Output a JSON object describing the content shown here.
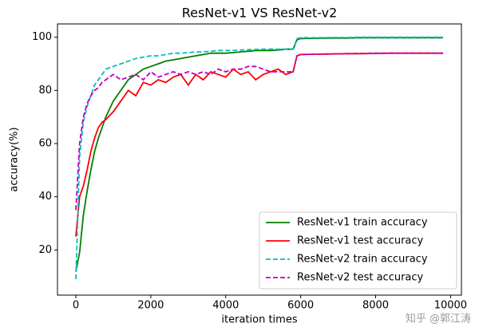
{
  "chart_data": {
    "type": "line",
    "title": "ResNet-v1 VS ResNet-v2",
    "x_label": "iteration times",
    "y_label": "accuracy(%)",
    "x": [
      0,
      100,
      200,
      300,
      400,
      500,
      600,
      700,
      800,
      1000,
      1200,
      1400,
      1600,
      1800,
      2000,
      2200,
      2400,
      2600,
      2800,
      3000,
      3200,
      3400,
      3600,
      3800,
      4000,
      4200,
      4400,
      4600,
      4800,
      5000,
      5200,
      5400,
      5600,
      5800,
      5900,
      6000,
      6400,
      6800,
      7200,
      7600,
      8000,
      8400,
      8800,
      9200,
      9600,
      9800
    ],
    "series": [
      {
        "name": "ResNet-v1 train accuracy",
        "color": "#008000",
        "linestyle": "solid",
        "values": [
          12,
          19,
          33,
          42,
          50,
          57,
          62,
          66,
          70,
          76,
          80,
          84,
          86,
          88,
          89,
          90,
          91,
          91.5,
          92,
          92.5,
          93,
          93.5,
          94,
          94,
          94,
          94.2,
          94.5,
          94.7,
          95,
          95,
          95,
          95.2,
          95.5,
          95.5,
          99,
          99.5,
          99.6,
          99.7,
          99.7,
          99.8,
          99.8,
          99.8,
          99.8,
          99.8,
          99.8,
          99.8
        ]
      },
      {
        "name": "ResNet-v1 test accuracy",
        "color": "#ff0000",
        "linestyle": "solid",
        "values": [
          25,
          40,
          44,
          50,
          57,
          62,
          66,
          68,
          69,
          72,
          76,
          80,
          78,
          83,
          82,
          84,
          83,
          85,
          86,
          82,
          86,
          84,
          87,
          86,
          85,
          88,
          86,
          87,
          84,
          86,
          87,
          88,
          86,
          87,
          93,
          93.5,
          93.6,
          93.7,
          93.8,
          93.8,
          93.9,
          94,
          94,
          94,
          94,
          94
        ]
      },
      {
        "name": "ResNet-v2 train accuracy",
        "color": "#00bfbf",
        "linestyle": "dashed",
        "values": [
          9,
          55,
          68,
          74,
          78,
          82,
          84,
          86,
          88,
          89,
          90,
          91,
          92,
          92.5,
          93,
          93,
          93.5,
          94,
          94,
          94.2,
          94.5,
          94.5,
          94.7,
          95,
          95,
          95,
          95.2,
          95.3,
          95.4,
          95.5,
          95.5,
          95.5,
          95.5,
          95.5,
          99.5,
          99.8,
          99.8,
          99.9,
          99.9,
          100,
          100,
          100,
          100,
          100,
          100,
          100
        ]
      },
      {
        "name": "ResNet-v2 test accuracy",
        "color": "#bf00bf",
        "linestyle": "dashed",
        "values": [
          35,
          60,
          70,
          75,
          78,
          80,
          81,
          83,
          84,
          86,
          84,
          85,
          86,
          84,
          87,
          85,
          86,
          87,
          86,
          87,
          86,
          87,
          86,
          88,
          87,
          88,
          88,
          89,
          89,
          88,
          87,
          87,
          87,
          87,
          93,
          93.5,
          93.6,
          93.7,
          93.8,
          93.9,
          94,
          94,
          94,
          94,
          94,
          94
        ]
      }
    ],
    "xlim": [
      -490,
      10290
    ],
    "xticks": [
      0,
      2000,
      4000,
      6000,
      8000,
      10000
    ],
    "ylim": [
      3,
      105
    ],
    "yticks": [
      20,
      40,
      60,
      80,
      100
    ],
    "grid": false,
    "legend_position": "lower right",
    "watermark": "知乎 @郭江涛"
  }
}
